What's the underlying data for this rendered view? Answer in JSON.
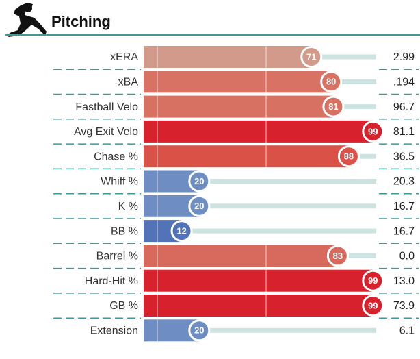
{
  "chart_data": {
    "type": "bar",
    "title": "Pitching",
    "categories": [
      "xERA",
      "xBA",
      "Fastball Velo",
      "Avg Exit Velo",
      "Chase %",
      "Whiff %",
      "K %",
      "BB %",
      "Barrel %",
      "Hard-Hit %",
      "GB %",
      "Extension"
    ],
    "values": [
      71,
      80,
      81,
      99,
      88,
      20,
      20,
      12,
      83,
      99,
      99,
      20
    ],
    "stats": [
      "2.99",
      ".194",
      "96.7",
      "81.1",
      "36.5",
      "20.3",
      "16.7",
      "16.7",
      "0.0",
      "13.0",
      "73.9",
      "6.1"
    ],
    "colors": [
      "#d29a8b",
      "#d77264",
      "#d77263",
      "#d7212c",
      "#da5148",
      "#6e8ec3",
      "#6e8ec3",
      "#5273b8",
      "#d86a5d",
      "#d7212c",
      "#d7212c",
      "#6e8ec3"
    ],
    "xlim": [
      0,
      100
    ]
  }
}
